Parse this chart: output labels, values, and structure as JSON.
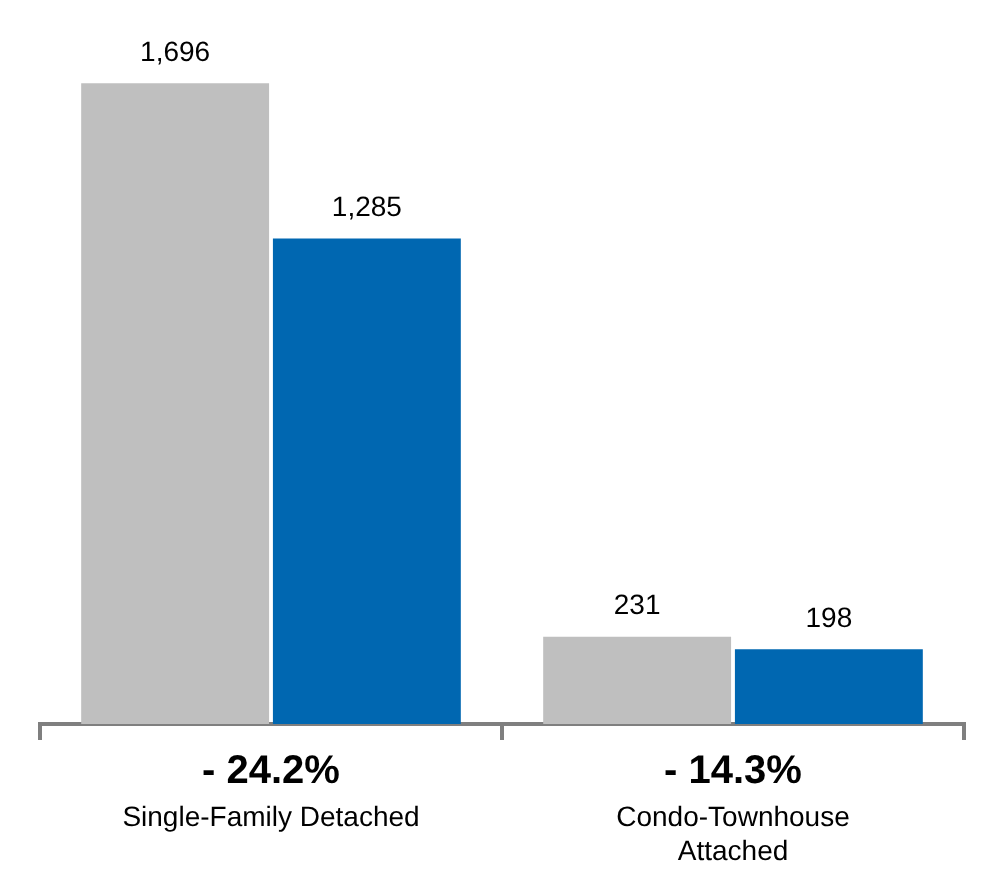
{
  "chart_data": {
    "type": "bar",
    "categories": [
      "Single-Family Detached",
      "Condo-Townhouse Attached"
    ],
    "series": [
      {
        "color": "#bfbfbf",
        "values": [
          1696,
          231
        ],
        "value_labels": [
          "1,696",
          "231"
        ]
      },
      {
        "color": "#0067b1",
        "values": [
          1285,
          198
        ],
        "value_labels": [
          "1,285",
          "198"
        ]
      }
    ],
    "legend": false,
    "grid": false,
    "annotations": [
      "- 24.2%",
      "- 14.3%"
    ]
  }
}
